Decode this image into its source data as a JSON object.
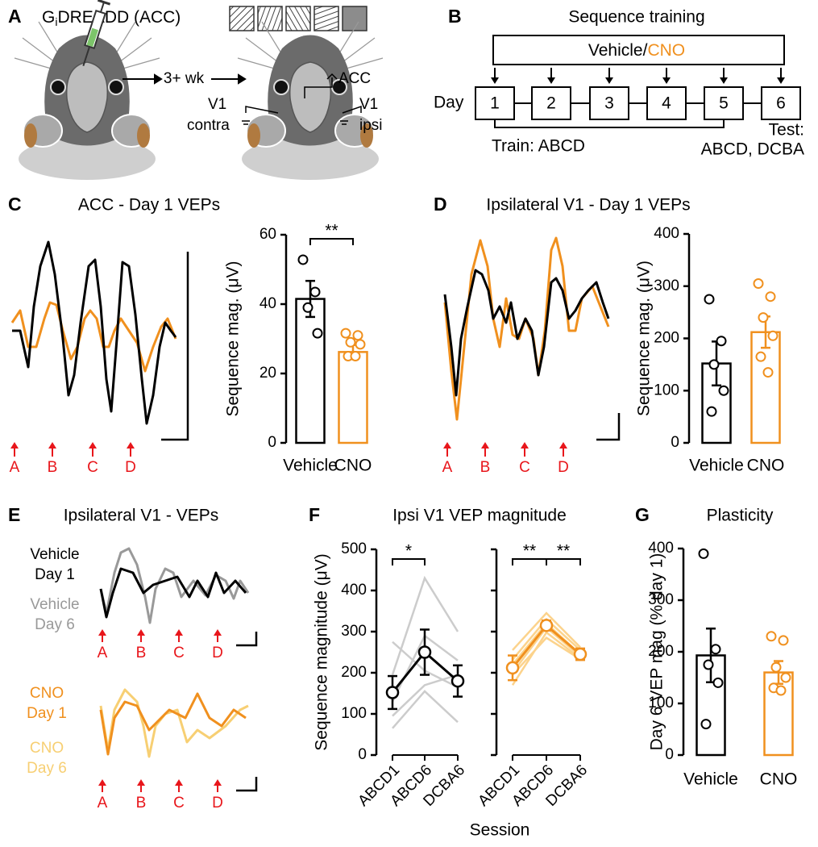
{
  "panels": {
    "A": {
      "label": "A",
      "title": [
        "G",
        "i",
        "DREADD (ACC)"
      ],
      "interval": "3+ wk",
      "site_acc": "ACC",
      "site_contra": [
        "V1",
        "contra"
      ],
      "site_ipsi": [
        "V1",
        "ipsi"
      ]
    },
    "B": {
      "label": "B",
      "title": "Sequence training",
      "treatment": [
        "Vehicle/",
        "CNO"
      ],
      "day_label": "Day",
      "days": [
        "1",
        "2",
        "3",
        "4",
        "5",
        "6"
      ],
      "train": "Train: ABCD",
      "test": [
        "Test:",
        "ABCD, DCBA"
      ]
    },
    "C": {
      "label": "C",
      "title": "ACC - Day 1 VEPs",
      "stimuli": [
        "A",
        "B",
        "C",
        "D"
      ]
    },
    "D": {
      "label": "D",
      "title": "Ipsilateral V1 - Day 1 VEPs",
      "stimuli": [
        "A",
        "B",
        "C",
        "D"
      ]
    },
    "E": {
      "label": "E",
      "title": "Ipsilateral V1 - VEPs",
      "traces": [
        [
          "Vehicle",
          "Day 1"
        ],
        [
          "Vehicle",
          "Day 6"
        ],
        [
          "CNO",
          "Day 1"
        ],
        [
          "CNO",
          "Day 6"
        ]
      ],
      "stimuli_top": [
        "A",
        "B",
        "C",
        "D"
      ],
      "stimuli_bottom": [
        "A",
        "B",
        "C",
        "D"
      ]
    },
    "F": {
      "label": "F",
      "title": "Ipsi V1 VEP magnitude"
    },
    "G": {
      "label": "G",
      "title": "Plasticity"
    }
  },
  "chart_data": [
    {
      "type": "bar",
      "ylabel": "Sequence mag. (μV)",
      "categories": [
        "Vehicle",
        "CNO"
      ],
      "colors": [
        "#000000",
        "#f0901e"
      ],
      "values": [
        41.5,
        26.2
      ],
      "errors": [
        5.2,
        2.0
      ],
      "points": [
        [
          52.8,
          43.5,
          39,
          31.6
        ],
        [
          31.6,
          31,
          29,
          28.4,
          25,
          25
        ]
      ],
      "ylim": [
        0,
        60
      ],
      "yticks": [
        0,
        20,
        40,
        60
      ],
      "significance": "**"
    },
    {
      "type": "bar",
      "ylabel": "Sequence mag. (μV)",
      "categories": [
        "Vehicle",
        "CNO"
      ],
      "colors": [
        "#000000",
        "#f0901e"
      ],
      "values": [
        152,
        212
      ],
      "errors": [
        42,
        30
      ],
      "points": [
        [
          275,
          195,
          150,
          100,
          60
        ],
        [
          305,
          280,
          240,
          205,
          165,
          135
        ]
      ],
      "ylim": [
        0,
        400
      ],
      "yticks": [
        0,
        100,
        200,
        300,
        400
      ]
    },
    {
      "type": "line",
      "ylabel": "Sequence magnitude (μV)",
      "xlabel": "Session",
      "categories": [
        "ABCD1",
        "ABCD6",
        "DCBA6"
      ],
      "color": "#000000",
      "subject_color": "#cccccc",
      "values": [
        152,
        250,
        180
      ],
      "errors": [
        40,
        55,
        38
      ],
      "subjects": [
        [
          195,
          430,
          300
        ],
        [
          275,
          205,
          165
        ],
        [
          130,
          290,
          230
        ],
        [
          95,
          170,
          195
        ],
        [
          65,
          155,
          80
        ]
      ],
      "ylim": [
        0,
        500
      ],
      "yticks": [
        0,
        100,
        200,
        300,
        400,
        500
      ],
      "significance": [
        "*"
      ]
    },
    {
      "type": "line",
      "categories": [
        "ABCD1",
        "ABCD6",
        "DCBA6"
      ],
      "color": "#f0901e",
      "subject_color": "#fcd38c",
      "values": [
        212,
        315,
        245
      ],
      "errors": [
        30,
        12,
        14
      ],
      "subjects": [
        [
          255,
          345,
          262
        ],
        [
          232,
          330,
          255
        ],
        [
          220,
          320,
          245
        ],
        [
          200,
          310,
          240
        ],
        [
          170,
          298,
          235
        ],
        [
          195,
          285,
          233
        ]
      ],
      "ylim": [
        0,
        500
      ],
      "yticks": [
        0,
        100,
        200,
        300,
        400,
        500
      ],
      "significance": [
        "**",
        "**"
      ]
    },
    {
      "type": "bar",
      "ylabel": "Day 6 VEP mag (% day 1)",
      "categories": [
        "Vehicle",
        "CNO"
      ],
      "colors": [
        "#000000",
        "#f0901e"
      ],
      "values": [
        193,
        160
      ],
      "errors": [
        52,
        22
      ],
      "points": [
        [
          390,
          205,
          175,
          140,
          60
        ],
        [
          230,
          222,
          170,
          150,
          130,
          125
        ]
      ],
      "ylim": [
        0,
        400
      ],
      "yticks": [
        0,
        100,
        200,
        300,
        400
      ]
    }
  ]
}
